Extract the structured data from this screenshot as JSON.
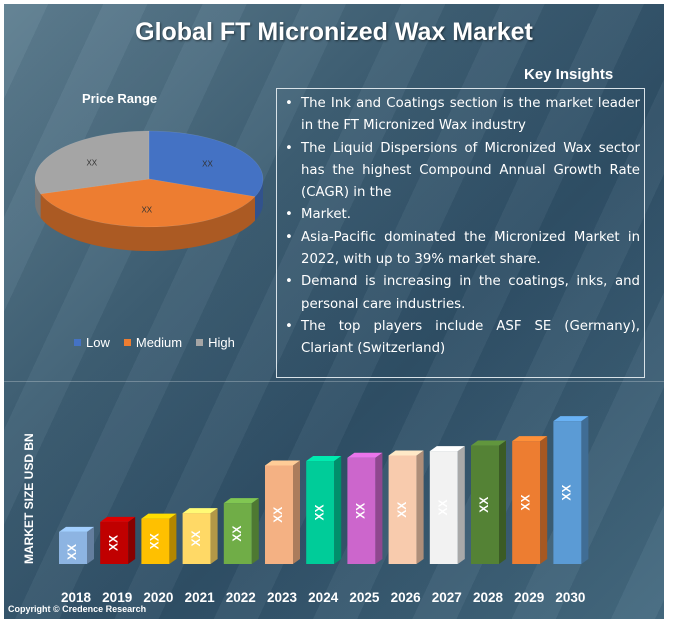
{
  "title": "Global FT Micronized Wax Market",
  "key_insights": {
    "heading": "Key Insights",
    "items": [
      "The Ink and Coatings section is the market leader in the FT Micronized Wax industry",
      "The Liquid Dispersions of Micronized Wax sector has the highest Compound Annual Growth Rate (CAGR) in the",
      "Market.",
      "Asia-Pacific dominated the Micronized Market in 2022, with up to 39% market share.",
      "Demand is increasing in the coatings, inks, and personal care industries.",
      "The top players include ASF SE (Germany), Clariant (Switzerland)"
    ]
  },
  "copyright": "Copyright © Credence Research",
  "chart_data": [
    {
      "type": "pie",
      "title": "Price Range",
      "categories": [
        "Low",
        "Medium",
        "High"
      ],
      "values": [
        31,
        39,
        30
      ],
      "labels": [
        "XX",
        "XX",
        "XX"
      ],
      "colors": [
        "#4472C4",
        "#ED7D31",
        "#A5A5A5"
      ],
      "legend_position": "bottom"
    },
    {
      "type": "bar",
      "ylabel": "MARKET SIZE USD BN",
      "categories": [
        "2018",
        "2019",
        "2020",
        "2021",
        "2022",
        "2023",
        "2024",
        "2025",
        "2026",
        "2027",
        "2028",
        "2029",
        "2030"
      ],
      "values": [
        2.9,
        3.8,
        4.1,
        4.6,
        5.5,
        8.9,
        9.3,
        9.6,
        9.8,
        10.2,
        10.7,
        11.1,
        12.9
      ],
      "labels": [
        "XX",
        "XX",
        "XX",
        "XX",
        "XX",
        "XX",
        "XX",
        "XX",
        "XX",
        "XX",
        "XX",
        "XX",
        "XX"
      ],
      "colors": [
        "#8DB4E2",
        "#C00000",
        "#FFC000",
        "#FFD966",
        "#70AD47",
        "#F4B183",
        "#00CC99",
        "#CC66CC",
        "#F8CBAD",
        "#F2F2F2",
        "#548235",
        "#ED7D31",
        "#5B9BD5"
      ],
      "ylim": [
        0,
        14
      ]
    }
  ]
}
